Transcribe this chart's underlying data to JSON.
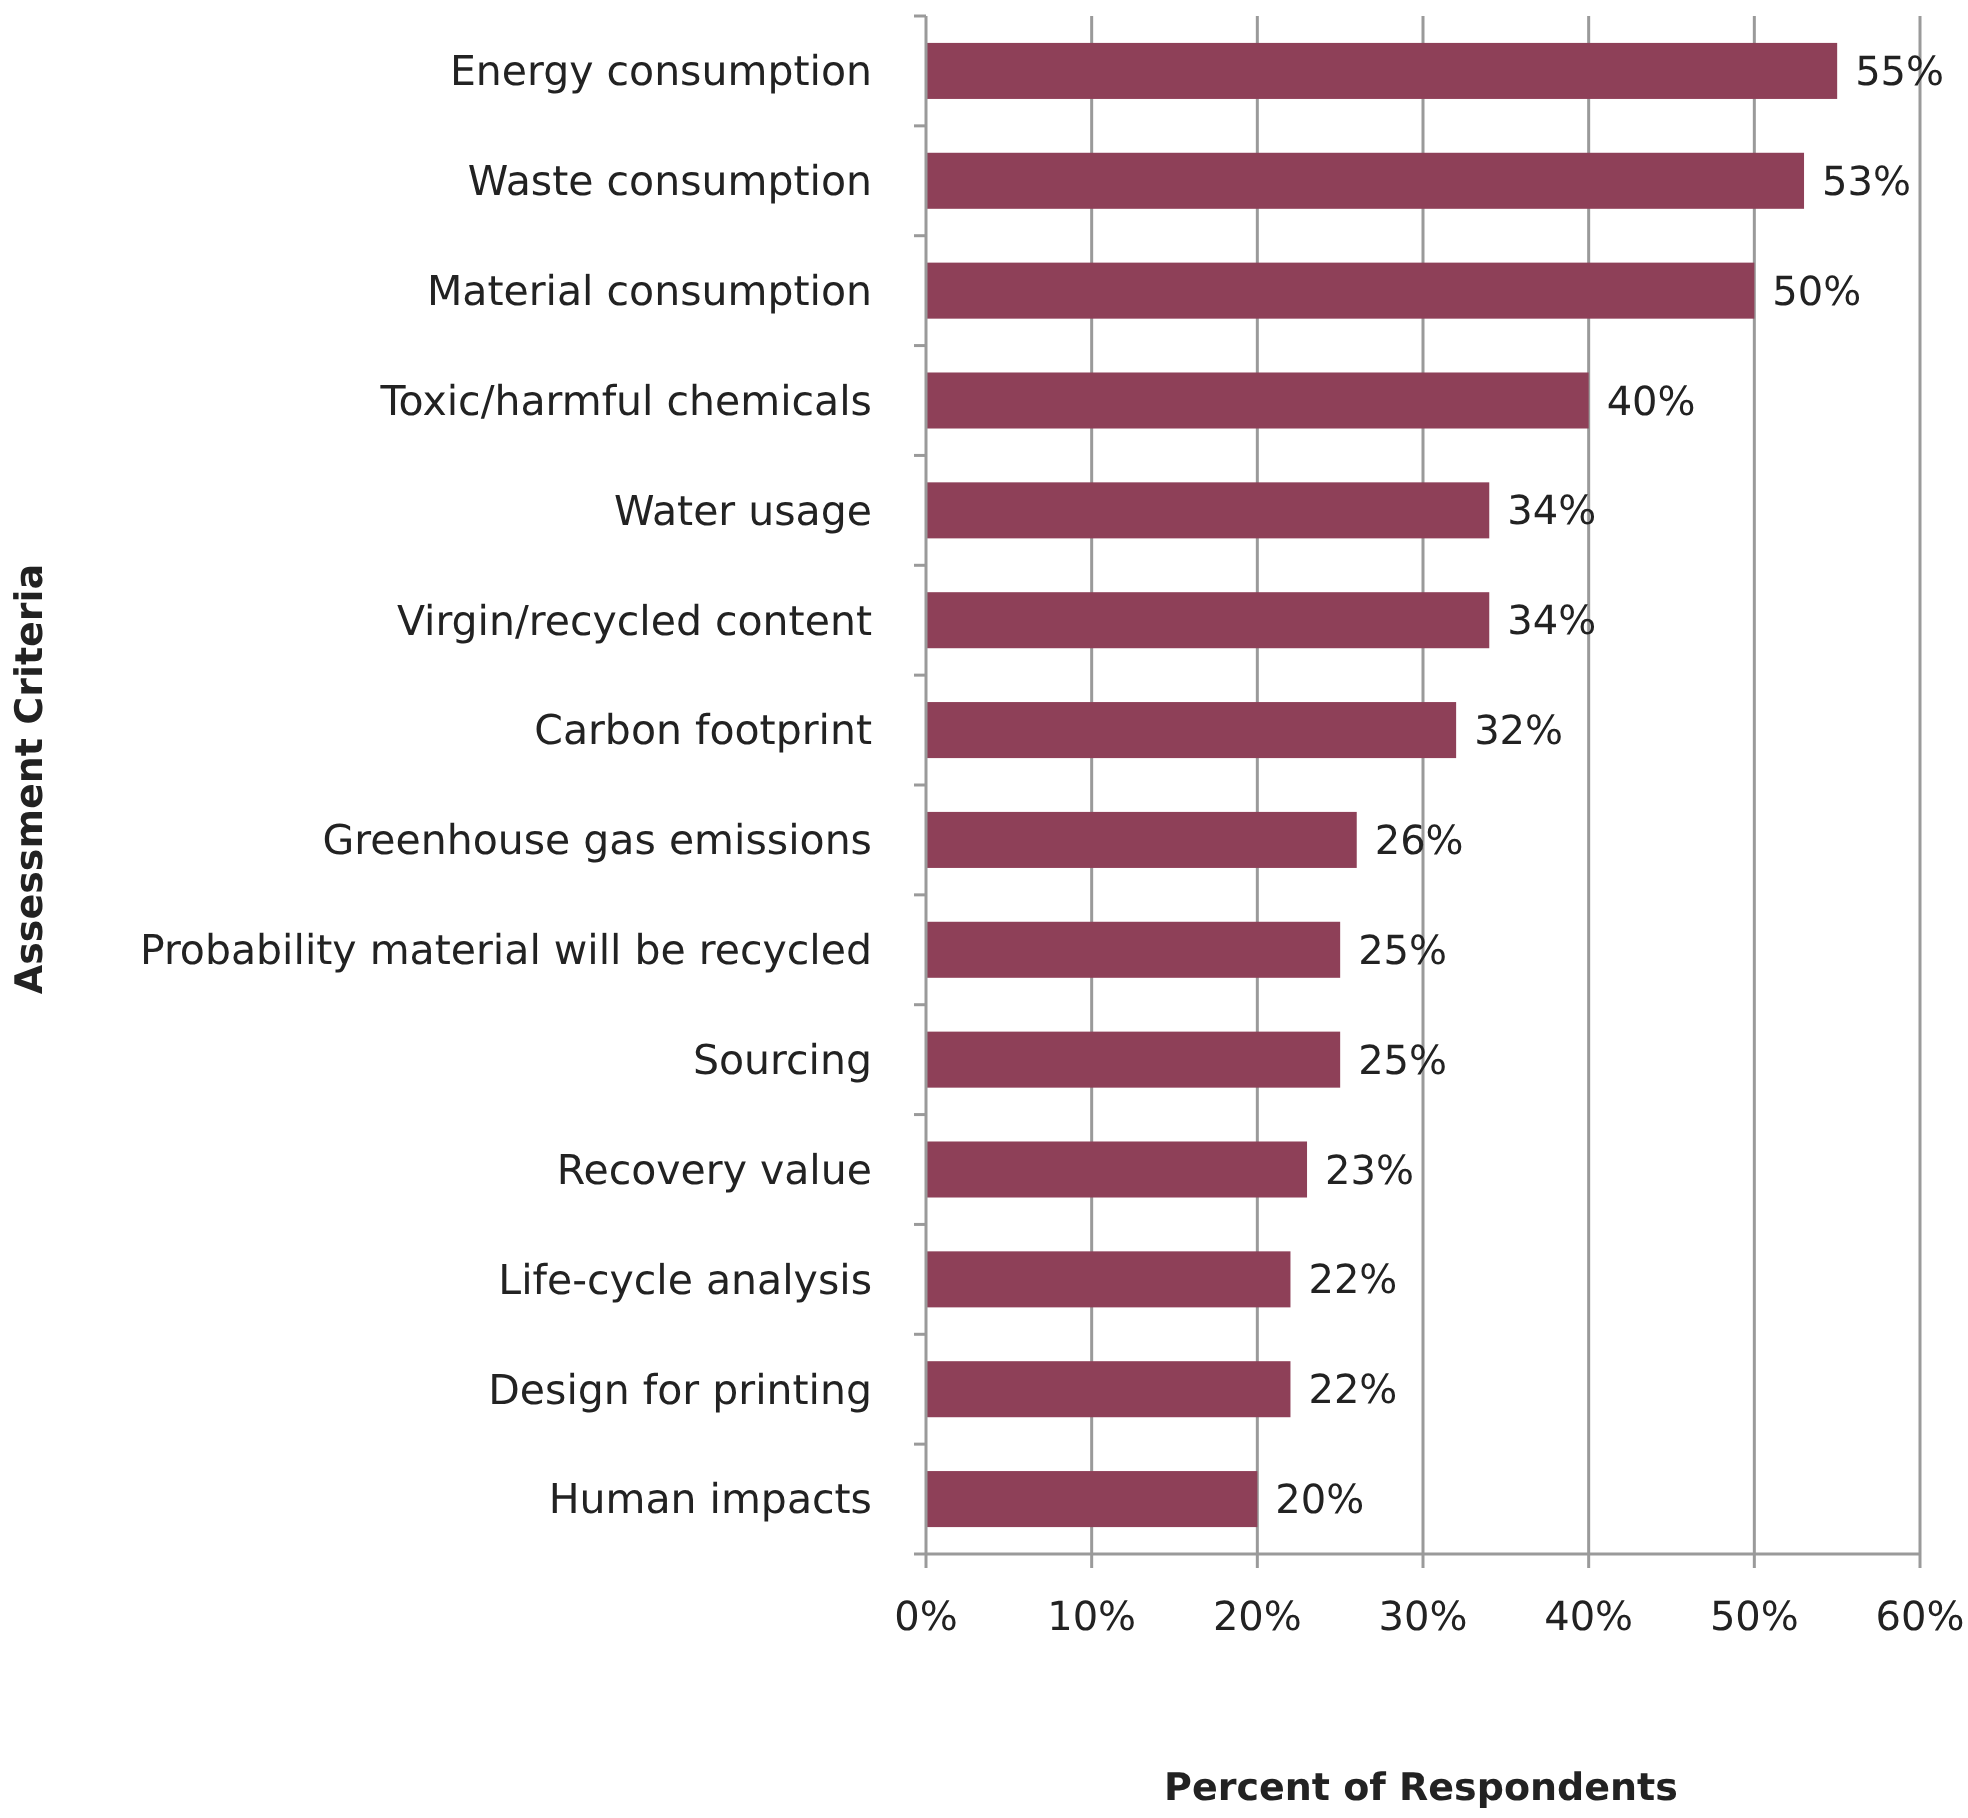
{
  "chart_data": {
    "type": "bar",
    "orientation": "horizontal",
    "xlabel": "Percent of Respondents",
    "ylabel": "Assessment Criteria",
    "categories": [
      "Energy consumption",
      "Waste consumption",
      "Material consumption",
      "Toxic/harmful chemicals",
      "Water usage",
      "Virgin/recycled content",
      "Carbon footprint",
      "Greenhouse gas emissions",
      "Probability material will be recycled",
      "Sourcing",
      "Recovery value",
      "Life-cycle analysis",
      "Design for printing",
      "Human impacts"
    ],
    "values": [
      55,
      53,
      50,
      40,
      34,
      34,
      32,
      26,
      25,
      25,
      23,
      22,
      22,
      20
    ],
    "value_labels": [
      "55%",
      "53%",
      "50%",
      "40%",
      "34%",
      "34%",
      "32%",
      "26%",
      "25%",
      "25%",
      "23%",
      "22%",
      "22%",
      "20%"
    ],
    "color": "#8e4058",
    "xlim": [
      0,
      60
    ],
    "xticks": [
      {
        "value": 0,
        "label": "0%"
      },
      {
        "value": 10,
        "label": "10%"
      },
      {
        "value": 20,
        "label": "20%"
      },
      {
        "value": 30,
        "label": "30%"
      },
      {
        "value": 40,
        "label": "40%"
      },
      {
        "value": 50,
        "label": "50%"
      },
      {
        "value": 60,
        "label": "60%"
      }
    ],
    "grid": "x"
  }
}
